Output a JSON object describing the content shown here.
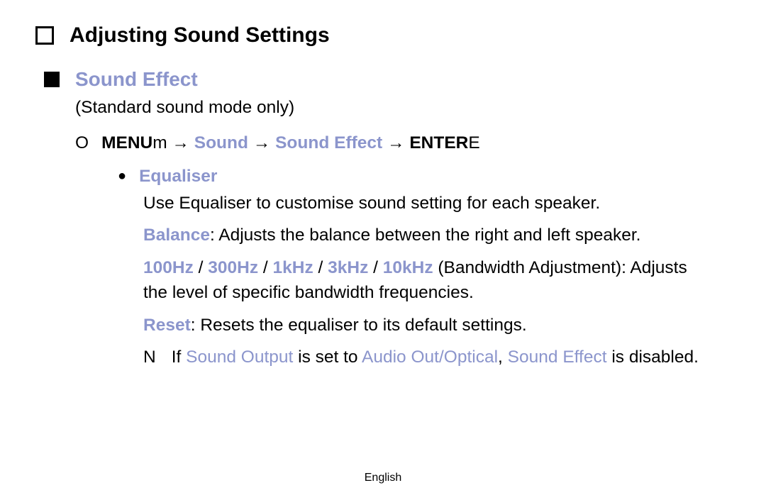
{
  "colors": {
    "text": "#000000",
    "highlight": "#8b95cc",
    "background": "#ffffff"
  },
  "typography": {
    "body_fontsize": 24.5,
    "title_fontsize": 30,
    "section_fontsize": 28,
    "footer_fontsize": 16,
    "font_family": "Arial, Helvetica, sans-serif"
  },
  "page_title": "Adjusting Sound Settings",
  "section": {
    "title": "Sound Effect",
    "subtitle": "(Standard sound mode only)"
  },
  "menu_path": {
    "o_mark": "O",
    "menu": "MENU",
    "menu_icon": "m",
    "arrow": " → ",
    "step1": "Sound",
    "step2": "Sound Effect",
    "enter": "ENTER",
    "enter_icon": "E"
  },
  "equaliser": {
    "bullet": "●",
    "label": "Equaliser",
    "desc": "Use Equaliser to customise sound setting for each speaker.",
    "balance_label": "Balance",
    "balance_text": ": Adjusts the balance between the right and left speaker.",
    "freq1": "100Hz",
    "freq2": "300Hz",
    "freq3": "1kHz",
    "freq4": "3kHz",
    "freq5": "10kHz",
    "sep": " / ",
    "freq_text": " (Bandwidth Adjustment): Adjusts the level of specific bandwidth frequencies.",
    "reset_label": "Reset",
    "reset_text": ": Resets the equaliser to its default settings."
  },
  "note": {
    "n_mark": "N",
    "pre": "If ",
    "t1": "Sound Output",
    "mid1": " is set to ",
    "t2": "Audio Out/Optical",
    "mid2": ", ",
    "t3": "Sound Effect",
    "post": " is disabled."
  },
  "footer": "English"
}
